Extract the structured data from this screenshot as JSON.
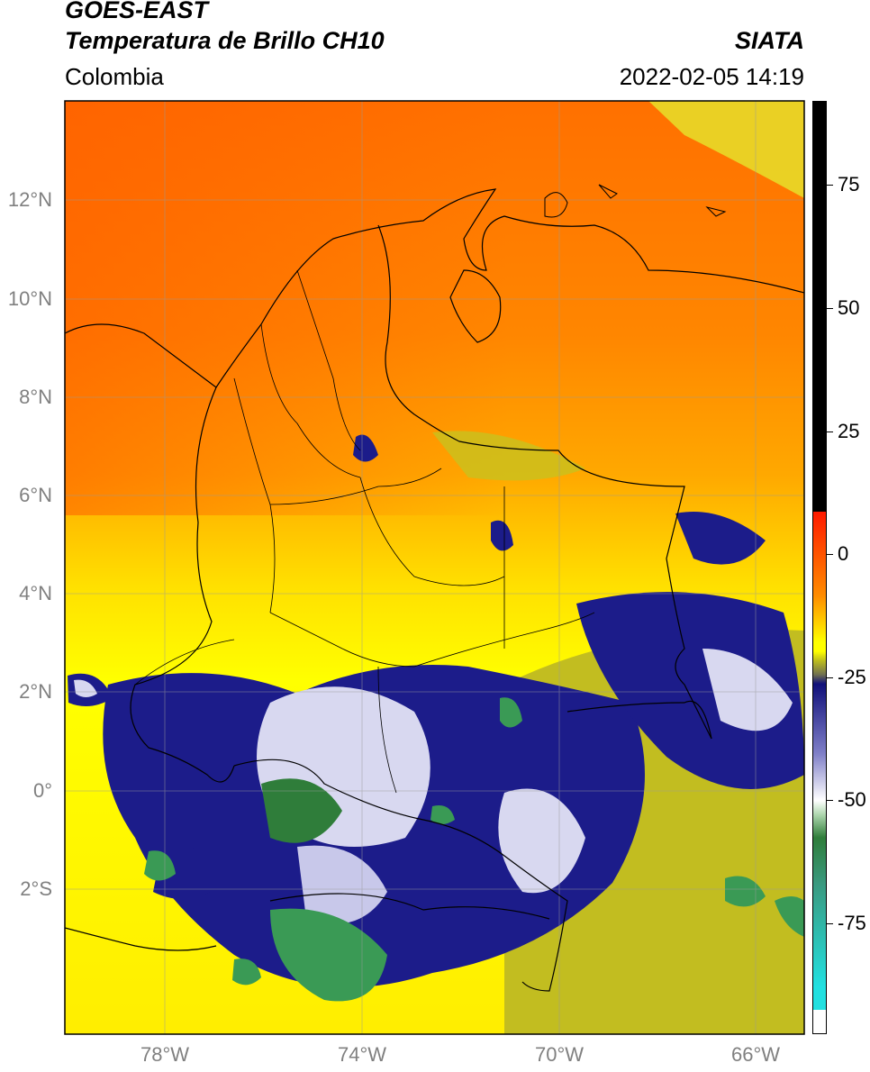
{
  "header": {
    "satellite": "GOES-EAST",
    "product": "Temperatura de Brillo CH10",
    "region": "Colombia",
    "agency": "SIATA",
    "timestamp": "2022-02-05 14:19"
  },
  "axes": {
    "lat_labels": [
      "12°N",
      "10°N",
      "8°N",
      "6°N",
      "4°N",
      "2°N",
      "0°",
      "2°S"
    ],
    "lon_labels": [
      "78°W",
      "74°W",
      "70°W",
      "66°W"
    ]
  },
  "colorbar": {
    "ticks": [
      "75",
      "50",
      "25",
      "0",
      "-25",
      "-50",
      "-75"
    ],
    "colors": {
      "black": "#000000",
      "red": "#ff1a00",
      "orange": "#ff8c00",
      "yellow": "#ffff00",
      "olive": "#bdbd1e",
      "navy": "#10107a",
      "white": "#ffffff",
      "green": "#2f7d3a",
      "cyan": "#22e0e0"
    }
  }
}
